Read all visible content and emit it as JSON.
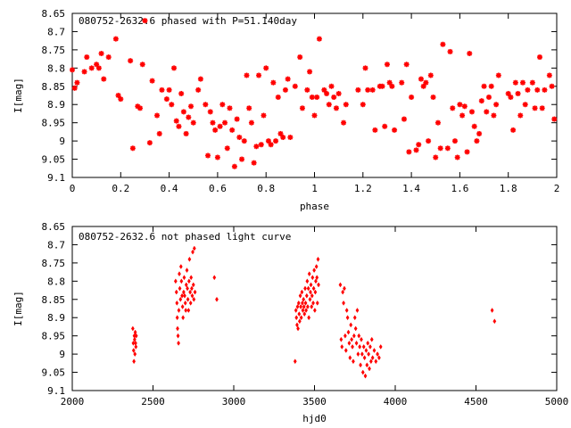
{
  "chart_data": [
    {
      "type": "scatter",
      "title": "080752-2632.6 phased with P=51.140day",
      "xlabel": "phase",
      "ylabel": "I[mag]",
      "xlim": [
        0,
        2
      ],
      "ylim": [
        9.1,
        8.65
      ],
      "y_inverted": true,
      "xticks": [
        "0",
        "0.2",
        "0.4",
        "0.6",
        "0.8",
        "1",
        "1.2",
        "1.4",
        "1.6",
        "1.8",
        "2"
      ],
      "yticks": [
        "8.65",
        "8.7",
        "8.75",
        "8.8",
        "8.85",
        "8.9",
        "8.95",
        "9",
        "9.05",
        "9.1"
      ],
      "grid": false,
      "marker": "star",
      "color": "#ff0000",
      "points": [
        [
          0.0,
          8.805
        ],
        [
          0.01,
          8.855
        ],
        [
          0.02,
          8.84
        ],
        [
          0.05,
          8.81
        ],
        [
          0.06,
          8.77
        ],
        [
          0.08,
          8.8
        ],
        [
          0.1,
          8.79
        ],
        [
          0.11,
          8.8
        ],
        [
          0.12,
          8.76
        ],
        [
          0.13,
          8.83
        ],
        [
          0.15,
          8.77
        ],
        [
          0.18,
          8.72
        ],
        [
          0.19,
          8.875
        ],
        [
          0.2,
          8.885
        ],
        [
          0.24,
          8.78
        ],
        [
          0.25,
          9.02
        ],
        [
          0.27,
          8.905
        ],
        [
          0.28,
          8.91
        ],
        [
          0.29,
          8.79
        ],
        [
          0.3,
          8.67
        ],
        [
          0.32,
          9.005
        ],
        [
          0.33,
          8.835
        ],
        [
          0.35,
          8.93
        ],
        [
          0.36,
          8.98
        ],
        [
          0.37,
          8.86
        ],
        [
          0.39,
          8.885
        ],
        [
          0.4,
          8.86
        ],
        [
          0.41,
          8.9
        ],
        [
          0.42,
          8.8
        ],
        [
          0.43,
          8.945
        ],
        [
          0.44,
          8.96
        ],
        [
          0.45,
          8.87
        ],
        [
          0.46,
          8.92
        ],
        [
          0.47,
          8.98
        ],
        [
          0.48,
          8.935
        ],
        [
          0.49,
          8.905
        ],
        [
          0.5,
          8.95
        ],
        [
          0.52,
          8.86
        ],
        [
          0.53,
          8.83
        ],
        [
          0.55,
          8.9
        ],
        [
          0.56,
          9.04
        ],
        [
          0.57,
          8.92
        ],
        [
          0.58,
          8.95
        ],
        [
          0.59,
          8.97
        ],
        [
          0.6,
          9.045
        ],
        [
          0.61,
          8.96
        ],
        [
          0.62,
          8.9
        ],
        [
          0.63,
          8.95
        ],
        [
          0.64,
          9.02
        ],
        [
          0.65,
          8.91
        ],
        [
          0.66,
          8.97
        ],
        [
          0.67,
          9.07
        ],
        [
          0.68,
          8.94
        ],
        [
          0.69,
          8.99
        ],
        [
          0.7,
          9.05
        ],
        [
          0.71,
          9.0
        ],
        [
          0.72,
          8.82
        ],
        [
          0.73,
          8.91
        ],
        [
          0.74,
          8.95
        ],
        [
          0.75,
          9.06
        ],
        [
          0.76,
          9.015
        ],
        [
          0.77,
          8.82
        ],
        [
          0.78,
          9.01
        ],
        [
          0.79,
          8.93
        ],
        [
          0.8,
          8.8
        ],
        [
          0.81,
          9.0
        ],
        [
          0.82,
          9.01
        ],
        [
          0.83,
          8.84
        ],
        [
          0.84,
          9.0
        ],
        [
          0.85,
          8.88
        ],
        [
          0.86,
          8.98
        ],
        [
          0.87,
          8.99
        ],
        [
          0.88,
          8.86
        ],
        [
          0.89,
          8.83
        ],
        [
          0.9,
          8.99
        ],
        [
          0.92,
          8.85
        ],
        [
          0.94,
          8.77
        ],
        [
          0.95,
          8.91
        ],
        [
          0.97,
          8.86
        ],
        [
          0.98,
          8.81
        ],
        [
          0.99,
          8.88
        ],
        [
          1.0,
          8.93
        ],
        [
          1.01,
          8.88
        ],
        [
          1.02,
          8.72
        ],
        [
          1.04,
          8.86
        ],
        [
          1.05,
          8.87
        ],
        [
          1.06,
          8.9
        ],
        [
          1.07,
          8.85
        ],
        [
          1.08,
          8.88
        ],
        [
          1.09,
          8.91
        ],
        [
          1.1,
          8.87
        ],
        [
          1.12,
          8.95
        ],
        [
          1.13,
          8.9
        ],
        [
          1.18,
          8.86
        ],
        [
          1.2,
          8.9
        ],
        [
          1.21,
          8.8
        ],
        [
          1.22,
          8.86
        ],
        [
          1.24,
          8.86
        ],
        [
          1.25,
          8.97
        ],
        [
          1.27,
          8.85
        ],
        [
          1.28,
          8.85
        ],
        [
          1.29,
          8.96
        ],
        [
          1.3,
          8.79
        ],
        [
          1.31,
          8.84
        ],
        [
          1.32,
          8.85
        ],
        [
          1.33,
          8.97
        ],
        [
          1.36,
          8.84
        ],
        [
          1.37,
          8.94
        ],
        [
          1.38,
          8.79
        ],
        [
          1.39,
          9.03
        ],
        [
          1.4,
          8.88
        ],
        [
          1.42,
          9.025
        ],
        [
          1.43,
          9.01
        ],
        [
          1.44,
          8.83
        ],
        [
          1.45,
          8.85
        ],
        [
          1.46,
          8.84
        ],
        [
          1.47,
          9.0
        ],
        [
          1.48,
          8.82
        ],
        [
          1.49,
          8.88
        ],
        [
          1.5,
          9.045
        ],
        [
          1.51,
          8.95
        ],
        [
          1.52,
          9.02
        ],
        [
          1.53,
          8.735
        ],
        [
          1.55,
          9.02
        ],
        [
          1.56,
          8.755
        ],
        [
          1.57,
          8.91
        ],
        [
          1.58,
          9.0
        ],
        [
          1.59,
          9.045
        ],
        [
          1.6,
          8.9
        ],
        [
          1.61,
          8.93
        ],
        [
          1.62,
          8.905
        ],
        [
          1.63,
          9.03
        ],
        [
          1.64,
          8.76
        ],
        [
          1.65,
          8.92
        ],
        [
          1.66,
          8.96
        ],
        [
          1.67,
          9.0
        ],
        [
          1.68,
          8.98
        ],
        [
          1.69,
          8.89
        ],
        [
          1.7,
          8.85
        ],
        [
          1.71,
          8.92
        ],
        [
          1.72,
          8.88
        ],
        [
          1.73,
          8.85
        ],
        [
          1.74,
          8.93
        ],
        [
          1.75,
          8.9
        ],
        [
          1.76,
          8.82
        ],
        [
          1.8,
          8.87
        ],
        [
          1.81,
          8.88
        ],
        [
          1.82,
          8.97
        ],
        [
          1.83,
          8.84
        ],
        [
          1.84,
          8.87
        ],
        [
          1.85,
          8.93
        ],
        [
          1.86,
          8.84
        ],
        [
          1.87,
          8.9
        ],
        [
          1.88,
          8.86
        ],
        [
          1.9,
          8.84
        ],
        [
          1.91,
          8.91
        ],
        [
          1.92,
          8.86
        ],
        [
          1.93,
          8.77
        ],
        [
          1.94,
          8.91
        ],
        [
          1.95,
          8.86
        ],
        [
          1.97,
          8.82
        ],
        [
          1.98,
          8.85
        ],
        [
          1.99,
          8.94
        ]
      ]
    },
    {
      "type": "scatter",
      "title": "080752-2632.6 not phased light curve",
      "xlabel": "hjd0",
      "ylabel": "I[mag]",
      "xlim": [
        2000,
        5000
      ],
      "ylim": [
        9.1,
        8.65
      ],
      "y_inverted": true,
      "xticks": [
        "2000",
        "2500",
        "3000",
        "3500",
        "4000",
        "4500",
        "5000"
      ],
      "yticks": [
        "8.65",
        "8.7",
        "8.75",
        "8.8",
        "8.85",
        "8.9",
        "8.95",
        "9",
        "9.05",
        "9.1"
      ],
      "grid": false,
      "marker": "diamond",
      "color": "#ff0000",
      "points": [
        [
          2375,
          8.93
        ],
        [
          2378,
          8.97
        ],
        [
          2380,
          8.99
        ],
        [
          2382,
          9.02
        ],
        [
          2384,
          8.95
        ],
        [
          2386,
          8.96
        ],
        [
          2388,
          9.0
        ],
        [
          2390,
          8.94
        ],
        [
          2392,
          8.97
        ],
        [
          2394,
          8.98
        ],
        [
          2396,
          8.95
        ],
        [
          2640,
          8.8
        ],
        [
          2645,
          8.83
        ],
        [
          2648,
          8.86
        ],
        [
          2650,
          8.9
        ],
        [
          2652,
          8.93
        ],
        [
          2655,
          8.95
        ],
        [
          2658,
          8.97
        ],
        [
          2660,
          8.88
        ],
        [
          2663,
          8.78
        ],
        [
          2666,
          8.82
        ],
        [
          2670,
          8.85
        ],
        [
          2673,
          8.76
        ],
        [
          2676,
          8.8
        ],
        [
          2680,
          8.84
        ],
        [
          2683,
          8.87
        ],
        [
          2686,
          8.9
        ],
        [
          2690,
          8.83
        ],
        [
          2693,
          8.79
        ],
        [
          2696,
          8.84
        ],
        [
          2700,
          8.86
        ],
        [
          2703,
          8.88
        ],
        [
          2706,
          8.81
        ],
        [
          2710,
          8.77
        ],
        [
          2713,
          8.82
        ],
        [
          2716,
          8.85
        ],
        [
          2720,
          8.88
        ],
        [
          2723,
          8.8
        ],
        [
          2726,
          8.74
        ],
        [
          2730,
          8.83
        ],
        [
          2733,
          8.86
        ],
        [
          2736,
          8.79
        ],
        [
          2740,
          8.82
        ],
        [
          2743,
          8.84
        ],
        [
          2746,
          8.72
        ],
        [
          2750,
          8.81
        ],
        [
          2753,
          8.85
        ],
        [
          2756,
          8.71
        ],
        [
          2760,
          8.83
        ],
        [
          2880,
          8.79
        ],
        [
          2895,
          8.85
        ],
        [
          3380,
          9.02
        ],
        [
          3385,
          8.88
        ],
        [
          3388,
          8.9
        ],
        [
          3392,
          8.92
        ],
        [
          3395,
          8.87
        ],
        [
          3398,
          8.93
        ],
        [
          3402,
          8.86
        ],
        [
          3405,
          8.89
        ],
        [
          3408,
          8.91
        ],
        [
          3412,
          8.84
        ],
        [
          3415,
          8.87
        ],
        [
          3418,
          8.9
        ],
        [
          3422,
          8.83
        ],
        [
          3425,
          8.86
        ],
        [
          3428,
          8.88
        ],
        [
          3432,
          8.85
        ],
        [
          3435,
          8.87
        ],
        [
          3438,
          8.89
        ],
        [
          3442,
          8.82
        ],
        [
          3445,
          8.86
        ],
        [
          3448,
          8.88
        ],
        [
          3452,
          8.84
        ],
        [
          3455,
          8.8
        ],
        [
          3458,
          8.87
        ],
        [
          3462,
          8.82
        ],
        [
          3465,
          8.9
        ],
        [
          3468,
          8.78
        ],
        [
          3472,
          8.85
        ],
        [
          3475,
          8.83
        ],
        [
          3478,
          8.81
        ],
        [
          3482,
          8.87
        ],
        [
          3485,
          8.84
        ],
        [
          3488,
          8.79
        ],
        [
          3492,
          8.86
        ],
        [
          3495,
          8.82
        ],
        [
          3498,
          8.77
        ],
        [
          3502,
          8.88
        ],
        [
          3505,
          8.83
        ],
        [
          3508,
          8.8
        ],
        [
          3512,
          8.76
        ],
        [
          3515,
          8.79
        ],
        [
          3518,
          8.86
        ],
        [
          3522,
          8.74
        ],
        [
          3525,
          8.81
        ],
        [
          3660,
          8.81
        ],
        [
          3665,
          8.96
        ],
        [
          3670,
          8.98
        ],
        [
          3675,
          8.83
        ],
        [
          3680,
          8.86
        ],
        [
          3685,
          8.82
        ],
        [
          3690,
          8.95
        ],
        [
          3695,
          8.99
        ],
        [
          3700,
          8.88
        ],
        [
          3705,
          8.9
        ],
        [
          3710,
          8.94
        ],
        [
          3715,
          8.97
        ],
        [
          3720,
          9.01
        ],
        [
          3725,
          8.92
        ],
        [
          3730,
          8.96
        ],
        [
          3735,
          8.98
        ],
        [
          3740,
          9.02
        ],
        [
          3745,
          8.95
        ],
        [
          3750,
          8.9
        ],
        [
          3755,
          8.93
        ],
        [
          3760,
          8.97
        ],
        [
          3765,
          8.88
        ],
        [
          3770,
          9.0
        ],
        [
          3775,
          8.95
        ],
        [
          3780,
          8.98
        ],
        [
          3785,
          9.03
        ],
        [
          3790,
          8.96
        ],
        [
          3795,
          9.0
        ],
        [
          3800,
          9.05
        ],
        [
          3805,
          8.98
        ],
        [
          3810,
          9.01
        ],
        [
          3815,
          9.06
        ],
        [
          3820,
          8.99
        ],
        [
          3825,
          9.03
        ],
        [
          3830,
          8.97
        ],
        [
          3835,
          9.0
        ],
        [
          3840,
          9.04
        ],
        [
          3845,
          8.98
        ],
        [
          3850,
          9.02
        ],
        [
          3855,
          8.96
        ],
        [
          3860,
          9.01
        ],
        [
          3870,
          8.99
        ],
        [
          3880,
          9.02
        ],
        [
          3890,
          9.0
        ],
        [
          3900,
          9.01
        ],
        [
          3910,
          8.98
        ],
        [
          4600,
          8.88
        ],
        [
          4615,
          8.91
        ]
      ]
    }
  ]
}
